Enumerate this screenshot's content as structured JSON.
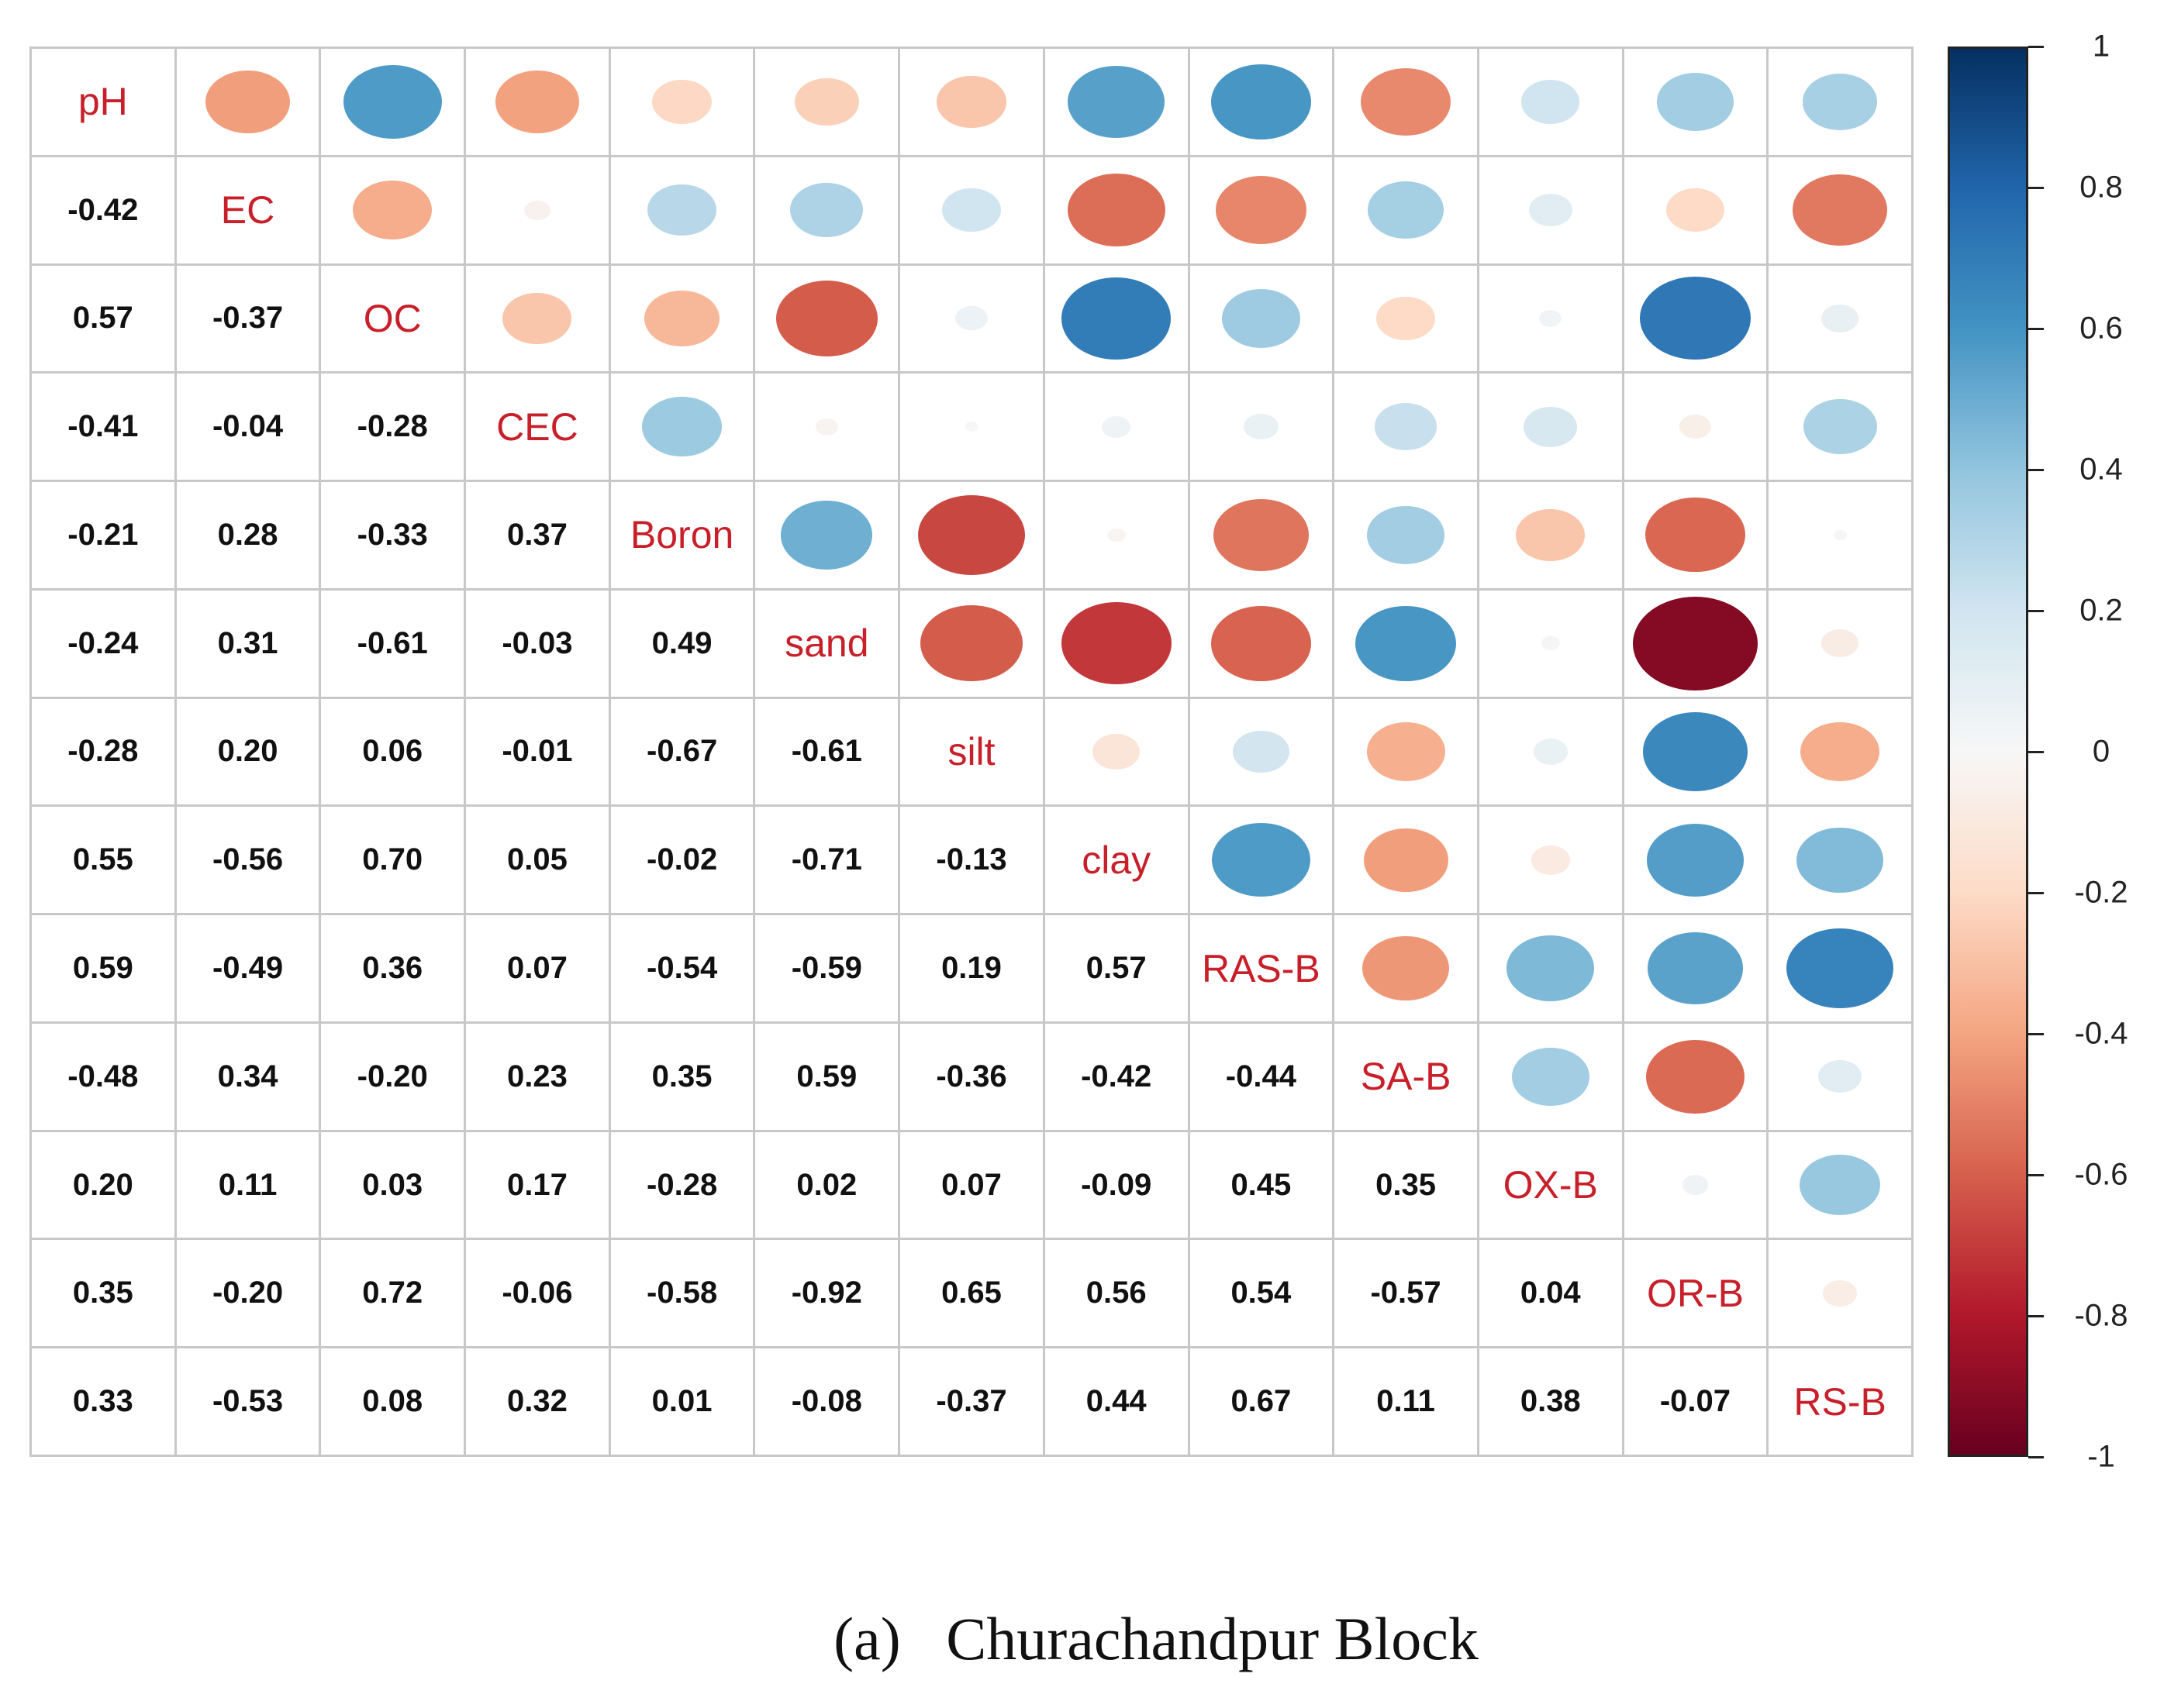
{
  "chart_data": {
    "type": "heatmap",
    "subtype": "correlation-matrix (corrplot mixed: upper circles, lower numbers)",
    "title": "(a)   Churachandpur Block",
    "variables": [
      "pH",
      "EC",
      "OC",
      "CEC",
      "Boron",
      "sand",
      "silt",
      "clay",
      "RAS-B",
      "SA-B",
      "OX-B",
      "OR-B",
      "RS-B"
    ],
    "matrix": [
      [
        1,
        -0.42,
        0.57,
        -0.41,
        -0.21,
        -0.24,
        -0.28,
        0.55,
        0.59,
        -0.48,
        0.2,
        0.35,
        0.33
      ],
      [
        -0.42,
        1,
        -0.37,
        -0.04,
        0.28,
        0.31,
        0.2,
        -0.56,
        -0.49,
        0.34,
        0.11,
        -0.2,
        -0.53
      ],
      [
        0.57,
        -0.37,
        1,
        -0.28,
        -0.33,
        -0.61,
        0.06,
        0.7,
        0.36,
        -0.2,
        0.03,
        0.72,
        0.08
      ],
      [
        -0.41,
        -0.04,
        -0.28,
        1,
        0.37,
        -0.03,
        -0.01,
        0.05,
        0.07,
        0.23,
        0.17,
        -0.06,
        0.32
      ],
      [
        -0.21,
        0.28,
        -0.33,
        0.37,
        1,
        0.49,
        -0.67,
        -0.02,
        -0.54,
        0.35,
        -0.28,
        -0.58,
        0.01
      ],
      [
        -0.24,
        0.31,
        -0.61,
        -0.03,
        0.49,
        1,
        -0.61,
        -0.71,
        -0.59,
        0.59,
        0.02,
        -0.92,
        -0.08
      ],
      [
        -0.28,
        0.2,
        0.06,
        -0.01,
        -0.67,
        -0.61,
        1,
        -0.13,
        0.19,
        -0.36,
        0.07,
        0.65,
        -0.37
      ],
      [
        0.55,
        -0.56,
        0.7,
        0.05,
        -0.02,
        -0.71,
        -0.13,
        1,
        0.57,
        -0.42,
        -0.09,
        0.56,
        0.44
      ],
      [
        0.59,
        -0.49,
        0.36,
        0.07,
        -0.54,
        -0.59,
        0.19,
        0.57,
        1,
        -0.44,
        0.45,
        0.54,
        0.67
      ],
      [
        -0.48,
        0.34,
        -0.2,
        0.23,
        0.35,
        0.59,
        -0.36,
        -0.42,
        -0.44,
        1,
        0.35,
        -0.57,
        0.11
      ],
      [
        0.2,
        0.11,
        0.03,
        0.17,
        -0.28,
        0.02,
        0.07,
        -0.09,
        0.45,
        0.35,
        1,
        0.04,
        0.38
      ],
      [
        0.35,
        -0.2,
        0.72,
        -0.06,
        -0.58,
        -0.92,
        0.65,
        0.56,
        0.54,
        -0.57,
        0.04,
        1,
        -0.07
      ],
      [
        0.33,
        -0.53,
        0.08,
        0.32,
        0.01,
        -0.08,
        -0.37,
        0.44,
        0.67,
        0.11,
        0.38,
        -0.07,
        1
      ]
    ],
    "colorbar": {
      "range": [
        -1,
        1
      ],
      "ticks": [
        "1",
        "0.8",
        "0.6",
        "0.4",
        "0.2",
        "0",
        "-0.2",
        "-0.4",
        "-0.6",
        "-0.8",
        "-1"
      ],
      "colors": {
        "neg_max": "#67001f",
        "neg": "#d6604d",
        "zero": "#f7f7f7",
        "pos": "#4393c3",
        "pos_max": "#053061"
      }
    },
    "label_color": "#c8202a",
    "grid": true,
    "legend_position": "right"
  },
  "caption": {
    "label": "(a)",
    "text": "Churachandpur Block"
  }
}
